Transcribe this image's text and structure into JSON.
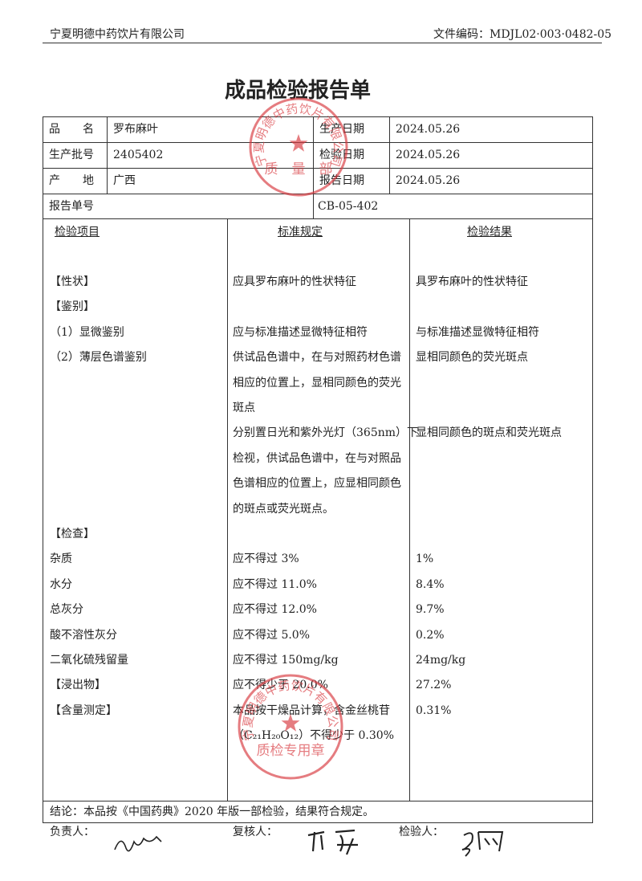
{
  "header": {
    "company": "宁夏明德中药饮片有限公司",
    "file_code": "文件编码：MDJL02·003·0482-05"
  },
  "title": "成品检验报告单",
  "info": [
    [
      "品　　名",
      "罗布麻叶",
      "生产日期",
      "2024.05.26"
    ],
    [
      "生产批号",
      "2405402",
      "检验日期",
      "2024.05.26"
    ],
    [
      "产　　地",
      "广西",
      "报告日期",
      "2024.05.26"
    ]
  ],
  "report_no": {
    "label": "报告单号",
    "value": "CB-05-402"
  },
  "columns": [
    "检验项目",
    "标准规定",
    "检验结果"
  ],
  "rows": [
    {
      "item": "【性状】",
      "standard": [
        "应具罗布麻叶的性状特征"
      ],
      "result": "具罗布麻叶的性状特征"
    },
    {
      "item": "【鉴别】"
    },
    {
      "item": "（1）显微鉴别",
      "standard": [
        "应与标准描述显微特征相符"
      ],
      "result": "与标准描述显微特征相符"
    },
    {
      "item": "（2）薄层色谱鉴别",
      "standard": [
        "供试品色谱中，在与对照药材色谱",
        "相应的位置上，显相同颜色的荧光",
        "斑点"
      ],
      "result": "显相同颜色的荧光斑点"
    },
    {
      "standard": [
        "分别置日光和紫外光灯（365nm）下",
        "检视，供试品色谱中，在与对照品",
        "色谱相应的位置上，应显相同颜色",
        "的斑点或荧光斑点。"
      ],
      "result": "显相同颜色的斑点和荧光斑点"
    },
    {
      "item": "【检查】"
    },
    {
      "item": "杂质",
      "standard": [
        "应不得过 3%"
      ],
      "result": "1%"
    },
    {
      "item": "水分",
      "standard": [
        "应不得过 11.0%"
      ],
      "result": "8.4%"
    },
    {
      "item": "总灰分",
      "standard": [
        "应不得过 12.0%"
      ],
      "result": "9.7%"
    },
    {
      "item": "酸不溶性灰分",
      "standard": [
        "应不得过 5.0%"
      ],
      "result": "0.2%"
    },
    {
      "item": "二氧化硫残留量",
      "standard": [
        "应不得过 150mg/kg"
      ],
      "result": "24mg/kg"
    },
    {
      "item": "【浸出物】",
      "standard": [
        "应不得少于 20.0%"
      ],
      "result": "27.2%"
    },
    {
      "item": "【含量测定】",
      "standard": [
        "本品按干燥品计算，含金丝桃苷",
        "（C₂₁H₂₀O₁₂）不得少于 0.30%"
      ],
      "result": "0.31%"
    }
  ],
  "conclusion": "结论：本品按《中国药典》2020 年版一部检验，结果符合规定。",
  "signatures": [
    "负责人：",
    "复核人：",
    "检验人："
  ],
  "stamps": [
    {
      "arc": "宁夏明德中药饮片有限公司",
      "label": "质　量　部"
    },
    {
      "arc": "宁夏明德中药饮片有限公司",
      "label": "质检专用章"
    }
  ]
}
